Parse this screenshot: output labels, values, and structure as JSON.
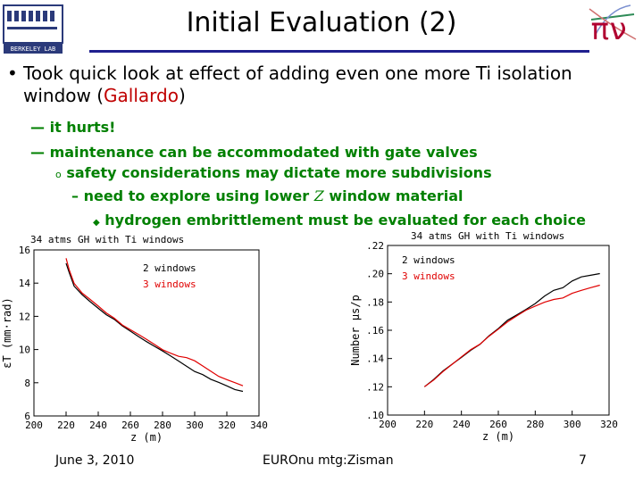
{
  "slide": {
    "title": "Initial Evaluation (2)",
    "logos": {
      "left_text": "BERKELEY LAB",
      "right_symbol": "πν"
    },
    "bullet": {
      "marker": "•",
      "text_before": "Took quick look at effect of adding even one more Ti isolation window (",
      "highlight": "Gallardo",
      "text_after": ")"
    },
    "sub_items": [
      {
        "marker": "—",
        "text": "it hurts!"
      },
      {
        "marker": "—",
        "text": "maintenance can be accommodated with gate valves"
      },
      {
        "marker": "o",
        "text": "safety considerations may dictate more subdivisions"
      },
      {
        "marker": "–",
        "text_before": "need to explore using lower ",
        "italic": "Z",
        "text_after": " window material"
      },
      {
        "marker": "◆",
        "text": "hydrogen embrittlement must be evaluated for each choice"
      }
    ],
    "footer": {
      "date": "June 3, 2010",
      "conference": "EUROnu mtg:Zisman",
      "page": "7"
    },
    "colors": {
      "title_rule": "#1f1f8f",
      "highlight": "#c00000",
      "sub_text": "#008000",
      "series_black": "#000000",
      "series_red": "#e00000"
    }
  },
  "chart_data": [
    {
      "type": "line",
      "title": "34 atms GH with Ti windows",
      "xlabel": "z (m)",
      "ylabel": "εT (mm·rad)",
      "xlim": [
        200,
        340
      ],
      "ylim": [
        6,
        16
      ],
      "xticks": [
        "200",
        "220",
        "240",
        "260",
        "280",
        "300",
        "320",
        "340"
      ],
      "yticks": [
        "6",
        "8",
        "10",
        "12",
        "14",
        "16"
      ],
      "legend": [
        "2 windows",
        "3 windows"
      ],
      "series": [
        {
          "name": "2 windows",
          "x": [
            220,
            222,
            225,
            230,
            235,
            240,
            245,
            250,
            255,
            260,
            265,
            270,
            275,
            280,
            285,
            290,
            295,
            300,
            305,
            310,
            315,
            320,
            325,
            330
          ],
          "values": [
            15.2,
            14.6,
            13.8,
            13.3,
            12.9,
            12.5,
            12.1,
            11.8,
            11.4,
            11.1,
            10.8,
            10.5,
            10.2,
            9.9,
            9.6,
            9.3,
            9.0,
            8.7,
            8.5,
            8.2,
            8.0,
            7.8,
            7.6,
            7.5
          ]
        },
        {
          "name": "3 windows",
          "x": [
            220,
            222,
            225,
            230,
            235,
            240,
            245,
            250,
            255,
            260,
            265,
            270,
            275,
            280,
            285,
            290,
            295,
            300,
            305,
            310,
            315,
            320,
            325,
            330
          ],
          "values": [
            15.5,
            14.8,
            14.0,
            13.4,
            13.0,
            12.6,
            12.2,
            11.9,
            11.5,
            11.2,
            10.9,
            10.6,
            10.3,
            10.0,
            9.8,
            9.6,
            9.5,
            9.3,
            9.0,
            8.7,
            8.4,
            8.2,
            8.0,
            7.8
          ]
        }
      ]
    },
    {
      "type": "line",
      "title": "34 atms GH with Ti windows",
      "xlabel": "z (m)",
      "ylabel": "Number μs/p",
      "xlim": [
        200,
        320
      ],
      "ylim": [
        0.1,
        0.22
      ],
      "xticks": [
        "200",
        "220",
        "240",
        "260",
        "280",
        "300",
        "320"
      ],
      "yticks": [
        ".10",
        ".12",
        ".14",
        ".16",
        ".18",
        ".20",
        ".22"
      ],
      "legend": [
        "2 windows",
        "3 windows"
      ],
      "series": [
        {
          "name": "2 windows",
          "x": [
            220,
            225,
            230,
            235,
            240,
            245,
            250,
            255,
            260,
            265,
            270,
            275,
            280,
            285,
            290,
            295,
            300,
            305,
            310,
            315
          ],
          "values": [
            0.12,
            0.125,
            0.131,
            0.136,
            0.141,
            0.146,
            0.15,
            0.156,
            0.161,
            0.167,
            0.171,
            0.175,
            0.179,
            0.184,
            0.188,
            0.19,
            0.195,
            0.198,
            0.199,
            0.2
          ]
        },
        {
          "name": "3 windows",
          "x": [
            220,
            225,
            230,
            235,
            240,
            245,
            250,
            255,
            260,
            265,
            270,
            275,
            280,
            285,
            290,
            295,
            300,
            305,
            310,
            315
          ],
          "values": [
            0.12,
            0.125,
            0.131,
            0.136,
            0.141,
            0.146,
            0.15,
            0.156,
            0.161,
            0.166,
            0.17,
            0.174,
            0.177,
            0.18,
            0.182,
            0.183,
            0.186,
            0.188,
            0.19,
            0.192
          ]
        }
      ]
    }
  ]
}
